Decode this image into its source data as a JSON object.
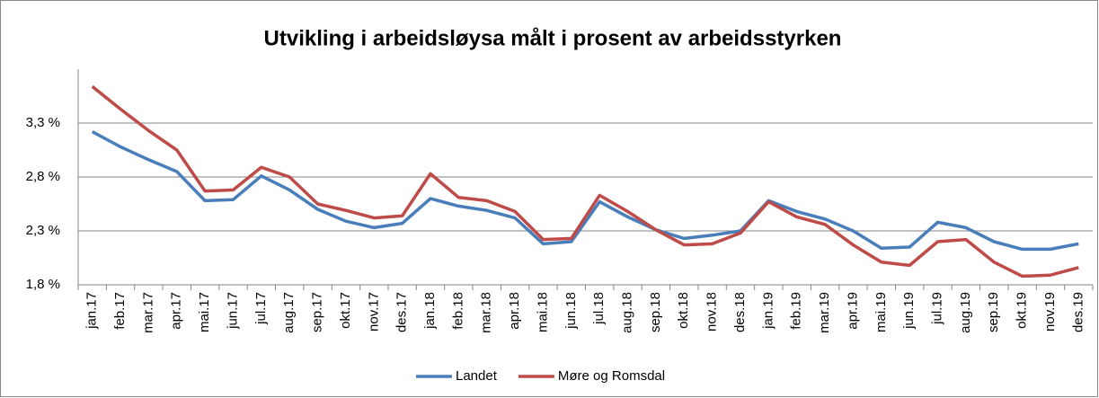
{
  "chart_data": {
    "type": "line",
    "title": "Utvikling i arbeidsløysa målt i prosent av arbeidsstyrken",
    "categories": [
      "jan.17",
      "feb.17",
      "mar.17",
      "apr.17",
      "mai.17",
      "jun.17",
      "jul.17",
      "aug.17",
      "sep.17",
      "okt.17",
      "nov.17",
      "des.17",
      "jan.18",
      "feb.18",
      "mar.18",
      "apr.18",
      "mai.18",
      "jun.18",
      "jul.18",
      "aug.18",
      "sep.18",
      "okt.18",
      "nov.18",
      "des.18",
      "jan.19",
      "feb.19",
      "mar.19",
      "apr.19",
      "mai.19",
      "jun.19",
      "jul.19",
      "aug.19",
      "sep.19",
      "okt.19",
      "nov.19",
      "des.19"
    ],
    "series": [
      {
        "name": "Landet",
        "color": "#4a7ebb",
        "values": [
          3.22,
          3.08,
          2.96,
          2.85,
          2.58,
          2.59,
          2.81,
          2.68,
          2.5,
          2.39,
          2.33,
          2.37,
          2.6,
          2.53,
          2.49,
          2.42,
          2.18,
          2.2,
          2.57,
          2.43,
          2.31,
          2.23,
          2.26,
          2.3,
          2.58,
          2.48,
          2.41,
          2.3,
          2.14,
          2.15,
          2.38,
          2.33,
          2.2,
          2.13,
          2.13,
          2.18
        ]
      },
      {
        "name": "Møre og Romsdal",
        "color": "#be4b48",
        "values": [
          3.64,
          3.43,
          3.23,
          3.05,
          2.67,
          2.68,
          2.89,
          2.8,
          2.55,
          2.49,
          2.42,
          2.44,
          2.83,
          2.61,
          2.58,
          2.48,
          2.22,
          2.23,
          2.63,
          2.48,
          2.31,
          2.17,
          2.18,
          2.28,
          2.57,
          2.43,
          2.36,
          2.17,
          2.01,
          1.98,
          2.2,
          2.22,
          2.01,
          1.88,
          1.89,
          1.96
        ]
      }
    ],
    "ylim": [
      1.8,
      3.8
    ],
    "yticks": [
      {
        "value": 1.8,
        "label": "1,8 %"
      },
      {
        "value": 2.3,
        "label": "2,3 %"
      },
      {
        "value": 2.8,
        "label": "2,8 %"
      },
      {
        "value": 3.3,
        "label": "3,3 %"
      }
    ],
    "grid": true,
    "legend": "bottom"
  }
}
